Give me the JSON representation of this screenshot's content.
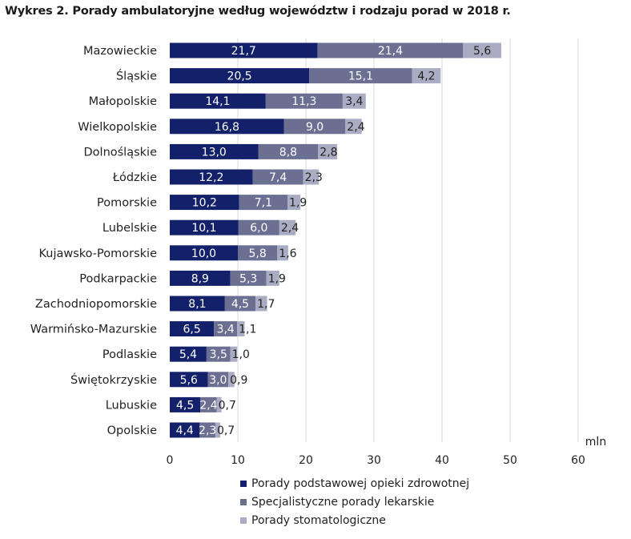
{
  "chart_data": {
    "type": "bar",
    "orientation": "horizontal",
    "stacked": true,
    "title": "Wykres 2. Porady ambulatoryjne według województw i rodzaju porad w 2018 r.",
    "unit_label": "mln",
    "categories": [
      "Mazowieckie",
      "Śląskie",
      "Małopolskie",
      "Wielkopolskie",
      "Dolnośląskie",
      "Łódzkie",
      "Pomorskie",
      "Lubelskie",
      "Kujawsko-Pomorskie",
      "Podkarpackie",
      "Zachodniopomorskie",
      "Warmińsko-Mazurskie",
      "Podlaskie",
      "Świętokrzyskie",
      "Lubuskie",
      "Opolskie"
    ],
    "series": [
      {
        "name": "Porady podstawowej opieki zdrowotnej",
        "color": "#13216a",
        "values": [
          21.7,
          20.5,
          14.1,
          16.8,
          13.0,
          12.2,
          10.2,
          10.1,
          10.0,
          8.9,
          8.1,
          6.5,
          5.4,
          5.6,
          4.5,
          4.4
        ],
        "labels": [
          "21,7",
          "20,5",
          "14,1",
          "16,8",
          "13,0",
          "12,2",
          "10,2",
          "10,1",
          "10,0",
          "8,9",
          "8,1",
          "6,5",
          "5,4",
          "5,6",
          "4,5",
          "4,4"
        ]
      },
      {
        "name": "Specjalistyczne porady lekarskie",
        "color": "#6b7093",
        "values": [
          21.4,
          15.1,
          11.3,
          9.0,
          8.8,
          7.4,
          7.1,
          6.0,
          5.8,
          5.3,
          4.5,
          3.4,
          3.5,
          3.0,
          2.4,
          2.3
        ],
        "labels": [
          "21,4",
          "15,1",
          "11,3",
          "9,0",
          "8,8",
          "7,4",
          "7,1",
          "6,0",
          "5,8",
          "5,3",
          "4,5",
          "3,4",
          "3,5",
          "3,0",
          "2,4",
          "2,3"
        ]
      },
      {
        "name": "Porady stomatologiczne",
        "color": "#a9acc3",
        "values": [
          5.6,
          4.2,
          3.4,
          2.4,
          2.8,
          2.3,
          1.9,
          2.4,
          1.6,
          1.9,
          1.7,
          1.1,
          1.0,
          0.9,
          0.7,
          0.7
        ],
        "labels": [
          "5,6",
          "4,2",
          "3,4",
          "2,4",
          "2,8",
          "2,3",
          "1,9",
          "2,4",
          "1,6",
          "1,9",
          "1,7",
          "1,1",
          "1,0",
          "0,9",
          "0,7",
          "0,7"
        ]
      }
    ],
    "xlim": [
      0,
      60
    ],
    "xticks": [
      0,
      10,
      20,
      30,
      40,
      50,
      60
    ],
    "xtick_labels": [
      "0",
      "10",
      "20",
      "30",
      "40",
      "50",
      "60"
    ],
    "grid": true,
    "legend_position": "bottom"
  }
}
